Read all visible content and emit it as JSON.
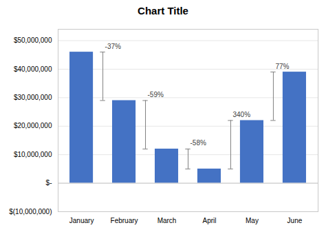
{
  "chart_data": {
    "type": "bar",
    "title": "Chart Title",
    "categories": [
      "January",
      "February",
      "March",
      "April",
      "May",
      "June"
    ],
    "values": [
      46000000,
      29000000,
      12000000,
      5000000,
      22000000,
      39000000
    ],
    "color": "#4472C4",
    "ylim": [
      -10000000,
      54000000
    ],
    "yticks": [
      {
        "value": -10000000,
        "label": "$(10,000,000)"
      },
      {
        "value": 0,
        "label": "$-"
      },
      {
        "value": 10000000,
        "label": "$10,000,000"
      },
      {
        "value": 20000000,
        "label": "$20,000,000"
      },
      {
        "value": 30000000,
        "label": "$30,000,000"
      },
      {
        "value": 40000000,
        "label": "$40,000,000"
      },
      {
        "value": 50000000,
        "label": "$50,000,000"
      }
    ],
    "grid": true,
    "annotations": [
      {
        "text": "-37%",
        "from": "January",
        "to": "February"
      },
      {
        "text": "-59%",
        "from": "February",
        "to": "March"
      },
      {
        "text": "-58%",
        "from": "March",
        "to": "April"
      },
      {
        "text": "340%",
        "from": "April",
        "to": "May"
      },
      {
        "text": "77%",
        "from": "May",
        "to": "June"
      }
    ]
  }
}
